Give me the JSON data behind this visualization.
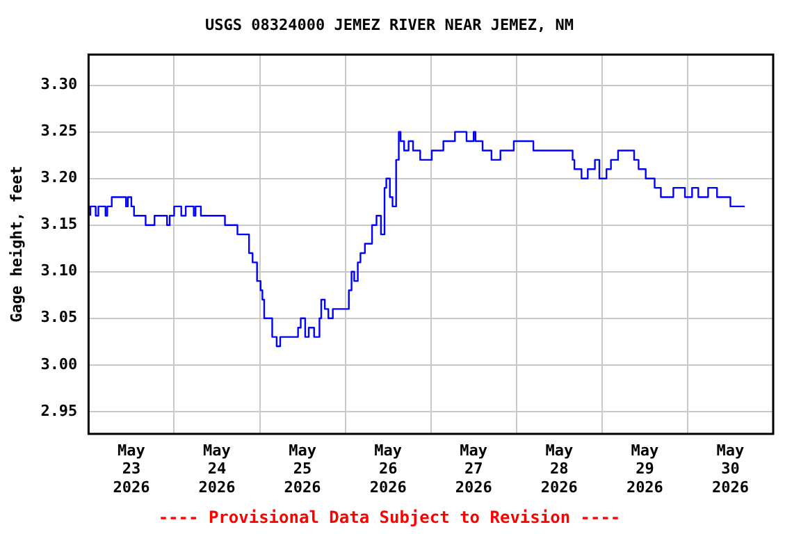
{
  "chart_data": {
    "type": "step",
    "title": "USGS 08324000 JEMEZ RIVER NEAR JEMEZ, NM",
    "ylabel": "Gage height, feet",
    "annotations": [
      "---- Provisional Data Subject to Revision ----"
    ],
    "x": [
      "2026-05-23T00:30",
      "2026-05-23T02:00",
      "2026-05-23T02:45",
      "2026-05-23T04:45",
      "2026-05-23T05:15",
      "2026-05-23T06:30",
      "2026-05-23T10:30",
      "2026-05-23T11:00",
      "2026-05-23T12:00",
      "2026-05-23T12:45",
      "2026-05-23T16:00",
      "2026-05-23T18:30",
      "2026-05-23T22:00",
      "2026-05-23T22:45",
      "2026-05-24T00:00",
      "2026-05-24T02:00",
      "2026-05-24T03:15",
      "2026-05-24T05:30",
      "2026-05-24T06:00",
      "2026-05-24T07:30",
      "2026-05-24T14:15",
      "2026-05-24T17:45",
      "2026-05-24T21:00",
      "2026-05-24T22:00",
      "2026-05-24T23:15",
      "2026-05-25T00:15",
      "2026-05-25T00:45",
      "2026-05-25T01:15",
      "2026-05-25T03:30",
      "2026-05-25T04:45",
      "2026-05-25T05:45",
      "2026-05-25T10:45",
      "2026-05-25T11:30",
      "2026-05-25T12:45",
      "2026-05-25T13:45",
      "2026-05-25T15:15",
      "2026-05-25T16:45",
      "2026-05-25T17:15",
      "2026-05-25T18:15",
      "2026-05-25T19:15",
      "2026-05-25T20:30",
      "2026-05-26T01:00",
      "2026-05-26T01:45",
      "2026-05-26T02:30",
      "2026-05-26T03:30",
      "2026-05-26T04:15",
      "2026-05-26T05:30",
      "2026-05-26T07:30",
      "2026-05-26T08:45",
      "2026-05-26T10:00",
      "2026-05-26T11:00",
      "2026-05-26T11:30",
      "2026-05-26T12:30",
      "2026-05-26T13:15",
      "2026-05-26T14:15",
      "2026-05-26T15:00",
      "2026-05-26T15:30",
      "2026-05-26T16:30",
      "2026-05-26T17:45",
      "2026-05-26T19:00",
      "2026-05-26T21:00",
      "2026-05-27T00:15",
      "2026-05-27T03:30",
      "2026-05-27T06:45",
      "2026-05-27T10:00",
      "2026-05-27T12:00",
      "2026-05-27T12:30",
      "2026-05-27T14:30",
      "2026-05-27T17:00",
      "2026-05-27T19:30",
      "2026-05-27T23:15",
      "2026-05-28T04:45",
      "2026-05-28T07:15",
      "2026-05-28T15:45",
      "2026-05-28T16:15",
      "2026-05-28T18:15",
      "2026-05-28T20:00",
      "2026-05-28T22:00",
      "2026-05-28T23:15",
      "2026-05-29T01:15",
      "2026-05-29T02:30",
      "2026-05-29T04:30",
      "2026-05-29T09:00",
      "2026-05-29T10:15",
      "2026-05-29T12:15",
      "2026-05-29T14:45",
      "2026-05-29T16:30",
      "2026-05-29T20:00",
      "2026-05-29T23:15",
      "2026-05-30T01:15",
      "2026-05-30T03:00",
      "2026-05-30T05:45",
      "2026-05-30T08:15",
      "2026-05-30T12:00",
      "2026-05-30T14:00",
      "2026-05-30T16:00"
    ],
    "series": [
      {
        "color": "#0000ff",
        "values": [
          3.16,
          3.17,
          3.16,
          3.17,
          3.16,
          3.17,
          3.18,
          3.17,
          3.18,
          3.17,
          3.16,
          3.15,
          3.16,
          3.15,
          3.16,
          3.17,
          3.16,
          3.17,
          3.16,
          3.17,
          3.16,
          3.15,
          3.14,
          3.12,
          3.11,
          3.09,
          3.08,
          3.07,
          3.05,
          3.03,
          3.02,
          3.03,
          3.04,
          3.05,
          3.03,
          3.04,
          3.03,
          3.05,
          3.07,
          3.06,
          3.05,
          3.06,
          3.08,
          3.1,
          3.09,
          3.11,
          3.12,
          3.13,
          3.15,
          3.16,
          3.14,
          3.19,
          3.2,
          3.18,
          3.17,
          3.22,
          3.25,
          3.24,
          3.23,
          3.24,
          3.23,
          3.22,
          3.23,
          3.24,
          3.25,
          3.24,
          3.25,
          3.24,
          3.23,
          3.22,
          3.23,
          3.24,
          3.23,
          3.23,
          3.22,
          3.21,
          3.2,
          3.21,
          3.22,
          3.2,
          3.21,
          3.22,
          3.23,
          3.22,
          3.21,
          3.2,
          3.19,
          3.18,
          3.19,
          3.18,
          3.19,
          3.18,
          3.19,
          3.18,
          3.17,
          3.17
        ]
      }
    ],
    "xlim": [
      "2026-05-23",
      "2026-05-31"
    ],
    "xticks": [
      {
        "value": "2026-05-23T12:00",
        "label": "May 23 2026"
      },
      {
        "value": "2026-05-24",
        "label": null
      },
      {
        "value": "2026-05-24T12:00",
        "label": "May 24 2026"
      },
      {
        "value": "2026-05-25",
        "label": null
      },
      {
        "value": "2026-05-25T12:00",
        "label": "May 25 2026"
      },
      {
        "value": "2026-05-26",
        "label": null
      },
      {
        "value": "2026-05-26T12:00",
        "label": "May 26 2026"
      },
      {
        "value": "2026-05-27",
        "label": null
      },
      {
        "value": "2026-05-27T12:00",
        "label": "May 27 2026"
      },
      {
        "value": "2026-05-28",
        "label": null
      },
      {
        "value": "2026-05-28T12:00",
        "label": "May 28 2026"
      },
      {
        "value": "2026-05-29",
        "label": null
      },
      {
        "value": "2026-05-29T12:00",
        "label": "May 29 2026"
      },
      {
        "value": "2026-05-30",
        "label": null
      },
      {
        "value": "2026-05-30T12:00",
        "label": "May 30 2026"
      }
    ],
    "ylim": [
      2.926,
      3.333
    ],
    "yticks": [
      {
        "value": 2.95,
        "label": "2.95"
      },
      {
        "value": 3.0,
        "label": "3.00"
      },
      {
        "value": 3.05,
        "label": "3.05"
      },
      {
        "value": 3.1,
        "label": "3.10"
      },
      {
        "value": 3.15,
        "label": "3.15"
      },
      {
        "value": 3.2,
        "label": "3.20"
      },
      {
        "value": 3.25,
        "label": "3.25"
      },
      {
        "value": 3.3,
        "label": "3.30"
      }
    ],
    "grid": true,
    "marker": "none",
    "line_style": "solid"
  }
}
